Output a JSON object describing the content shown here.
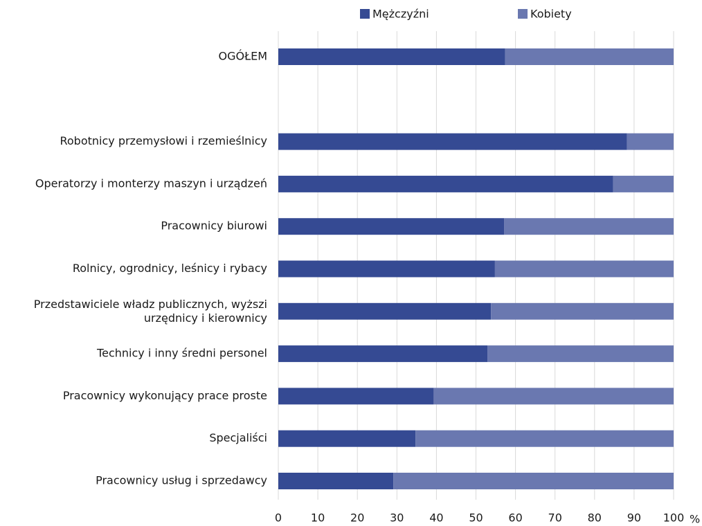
{
  "chart_data": {
    "type": "stacked_barh",
    "categories": [
      "OGÓŁEM",
      null,
      "Robotnicy przemysłowi i rzemieślnicy",
      "Operatorzy i monterzy maszyn i urządzeń",
      "Pracownicy biurowi",
      "Rolnicy, ogrodnicy, leśnicy i rybacy",
      "Przedstawiciele władz publicznych, wyższi\nurzędnicy i kierownicy",
      "Technicy i inny średni personel",
      "Pracownicy wykonujący prace proste",
      "Specjaliści",
      "Pracownicy usług i sprzedawcy"
    ],
    "series": [
      {
        "name": "Mężczyźni",
        "color": "#354a93",
        "values": [
          57.4,
          null,
          88.2,
          84.7,
          57.1,
          54.8,
          53.8,
          52.9,
          39.3,
          34.7,
          29.1
        ]
      },
      {
        "name": "Kobiety",
        "color": "#6a78b0",
        "values": [
          42.6,
          null,
          11.8,
          15.3,
          42.9,
          45.2,
          46.2,
          47.1,
          60.7,
          65.3,
          70.9
        ]
      }
    ],
    "xlim": [
      0,
      100
    ],
    "xticks": [
      0,
      10,
      20,
      30,
      40,
      50,
      60,
      70,
      80,
      90,
      100
    ],
    "x_unit": "%",
    "grid": true,
    "legend": "top"
  }
}
